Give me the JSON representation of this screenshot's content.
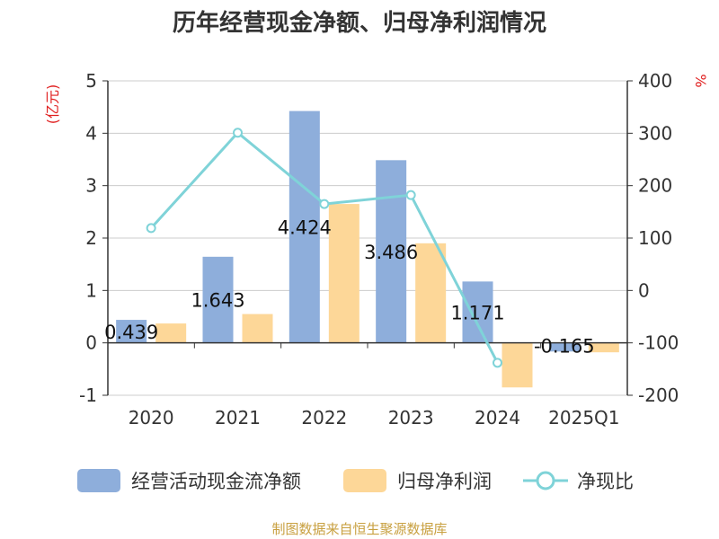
{
  "chart_data": {
    "type": "bar",
    "title": "历年经营现金净额、归母净利润情况",
    "categories": [
      "2020",
      "2021",
      "2022",
      "2023",
      "2024",
      "2025Q1"
    ],
    "y_left": {
      "unit": "(亿元)",
      "range": [
        -1,
        5
      ],
      "ticks": [
        "5",
        "4",
        "3",
        "2",
        "1",
        "0",
        "-1"
      ]
    },
    "y_right": {
      "unit": "%",
      "range": [
        -200,
        400
      ],
      "ticks": [
        "400",
        "300",
        "200",
        "100",
        "0",
        "-100",
        "-200"
      ]
    },
    "series": [
      {
        "name": "经营活动现金流净额",
        "type": "bar",
        "axis": "left",
        "color": "#8eaedb",
        "values": [
          0.439,
          1.643,
          4.424,
          3.486,
          1.171,
          -0.165
        ],
        "labels": [
          "0.439",
          "1.643",
          "4.424",
          "3.486",
          "1.171",
          "-0.165"
        ]
      },
      {
        "name": "归母净利润",
        "type": "bar",
        "axis": "left",
        "color": "#fdd798",
        "values": [
          0.37,
          0.55,
          2.65,
          1.9,
          -0.85,
          -0.18
        ]
      },
      {
        "name": "净现比",
        "type": "line",
        "axis": "right",
        "color": "#7fd3d8",
        "values": [
          119,
          301,
          165,
          182,
          -138,
          null
        ]
      }
    ],
    "grid": true,
    "legend_position": "bottom"
  },
  "source": "制图数据来自恒生聚源数据库"
}
